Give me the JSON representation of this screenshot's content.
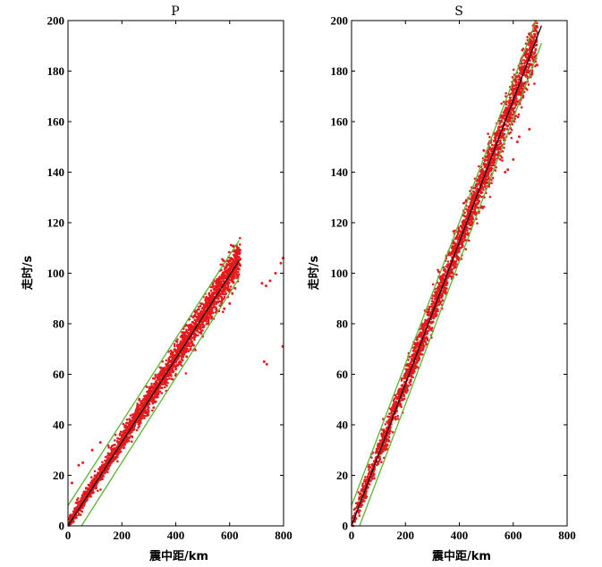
{
  "chart_data": [
    {
      "type": "scatter",
      "title": "P",
      "xlabel": "震中距/km",
      "ylabel": "走时/s",
      "xlim": [
        0,
        800
      ],
      "ylim": [
        0,
        200
      ],
      "x_ticks": [
        0,
        200,
        400,
        600,
        800
      ],
      "y_ticks": [
        0,
        20,
        40,
        60,
        80,
        100,
        120,
        140,
        160,
        180,
        200
      ],
      "grid": false,
      "legend": "none",
      "colors": {
        "points": "#e41a1c",
        "fit": "#111111",
        "bounds": "#5ab432"
      },
      "fit_line": [
        [
          0,
          0
        ],
        [
          635,
          105
        ]
      ],
      "bounds": [
        {
          "points": [
            [
              0,
              8
            ],
            [
              635,
              113
            ]
          ]
        },
        {
          "points": [
            [
              50,
              0
            ],
            [
              635,
              98
            ]
          ]
        }
      ],
      "band": {
        "x_range": [
          0,
          640
        ],
        "slope": 0.1655,
        "intercept": 0.5,
        "spread": 2.2
      },
      "outliers": [
        [
          15,
          17
        ],
        [
          40,
          24
        ],
        [
          55,
          25
        ],
        [
          90,
          30
        ],
        [
          120,
          33
        ],
        [
          380,
          60
        ],
        [
          400,
          62
        ],
        [
          440,
          67
        ],
        [
          470,
          70
        ],
        [
          500,
          75
        ],
        [
          520,
          80
        ],
        [
          540,
          82
        ],
        [
          560,
          85
        ],
        [
          580,
          86
        ],
        [
          600,
          88
        ],
        [
          610,
          92
        ],
        [
          620,
          94
        ],
        [
          570,
          88
        ],
        [
          555,
          90
        ],
        [
          620,
          109
        ],
        [
          632,
          110
        ],
        [
          720,
          96
        ],
        [
          735,
          95
        ],
        [
          750,
          97
        ],
        [
          770,
          100
        ],
        [
          790,
          104
        ],
        [
          798,
          106
        ],
        [
          728,
          65
        ],
        [
          738,
          64
        ],
        [
          797,
          71
        ]
      ]
    },
    {
      "type": "scatter",
      "title": "S",
      "xlabel": "震中距/km",
      "ylabel": "走时/s",
      "xlim": [
        0,
        800
      ],
      "ylim": [
        0,
        200
      ],
      "x_ticks": [
        0,
        200,
        400,
        600,
        800
      ],
      "y_ticks": [
        0,
        20,
        40,
        60,
        80,
        100,
        120,
        140,
        160,
        180,
        200
      ],
      "grid": false,
      "legend": "none",
      "colors": {
        "points": "#e41a1c",
        "fit": "#111111",
        "bounds": "#5ab432"
      },
      "fit_line": [
        [
          0,
          0
        ],
        [
          705,
          198
        ]
      ],
      "bounds": [
        {
          "points": [
            [
              0,
              8
            ],
            [
              685,
              200
            ]
          ]
        },
        {
          "points": [
            [
              30,
              0
            ],
            [
              705,
              191
            ]
          ]
        }
      ],
      "band": {
        "x_range": [
          0,
          690
        ],
        "slope": 0.28,
        "intercept": 0.5,
        "spread": 3.2
      },
      "outliers": [
        [
          40,
          12
        ],
        [
          80,
          20
        ],
        [
          120,
          38
        ],
        [
          200,
          60
        ],
        [
          250,
          75
        ],
        [
          330,
          95
        ],
        [
          360,
          108
        ],
        [
          430,
          118
        ],
        [
          470,
          130
        ],
        [
          480,
          138
        ],
        [
          495,
          142
        ],
        [
          540,
          152
        ],
        [
          555,
          160
        ],
        [
          575,
          165
        ],
        [
          570,
          140
        ],
        [
          580,
          141
        ],
        [
          600,
          145
        ],
        [
          615,
          152
        ],
        [
          622,
          154
        ],
        [
          660,
          157
        ]
      ]
    }
  ]
}
